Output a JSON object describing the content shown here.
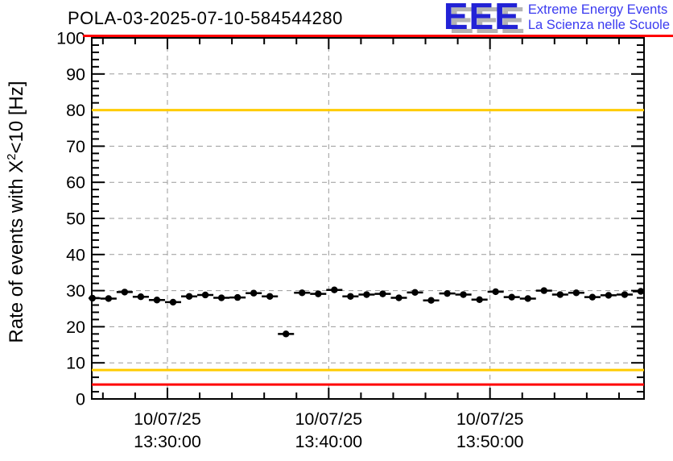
{
  "header": {
    "title": "POLA-03-2025-07-10-584544280",
    "logo": {
      "letters": "EEE",
      "tagline_line1": "Extreme Energy Events",
      "tagline_line2": "La Scienza nelle Scuole",
      "letters_color": "#2222d6",
      "shadow_color": "#b4b4b4",
      "tagline_color": "#3a3af0"
    }
  },
  "y_axis_title": {
    "prefix": "Rate of events with X",
    "sup": "2",
    "suffix": "<10 [Hz]"
  },
  "chart_data": {
    "type": "scatter",
    "title": "POLA-03-2025-07-10-584544280",
    "ylabel": "Rate of events with X^2<10 [Hz]",
    "xlabel": "",
    "ylim": [
      0,
      100
    ],
    "y_major_step": 10,
    "y_minor_step": 2,
    "grid": {
      "style": "dashed",
      "color": "#9a9a9a",
      "horizontal_at": [
        10,
        20,
        30,
        40,
        50,
        60,
        70,
        80,
        90
      ],
      "vertical_at_major_time_ticks": true
    },
    "x_axis": {
      "units": "minutes relative to 13:30:00",
      "t_range_min": [
        -4.69,
        29.55
      ],
      "minor_step_min": 2,
      "tick_labels": [
        {
          "date": "10/07/25",
          "time": "13:30:00",
          "t_min": 0
        },
        {
          "date": "10/07/25",
          "time": "13:40:00",
          "t_min": 10
        },
        {
          "date": "10/07/25",
          "time": "13:50:00",
          "t_min": 20
        }
      ]
    },
    "threshold_lines": [
      {
        "name": "alarm-high",
        "value": 100,
        "color": "#ff0000"
      },
      {
        "name": "warn-high",
        "value": 80,
        "color": "#ffcc00"
      },
      {
        "name": "warn-low",
        "value": 8,
        "color": "#ffcc00"
      },
      {
        "name": "alarm-low",
        "value": 4,
        "color": "#ff0000"
      }
    ],
    "series": [
      {
        "name": "event-rate",
        "marker": "filled-circle",
        "color": "#000000",
        "x_err_min": 0.5,
        "t_start_min": -4.65,
        "t_step_min": 1,
        "rates": [
          27.9,
          27.8,
          29.6,
          28.3,
          27.4,
          26.8,
          28.4,
          28.8,
          28.0,
          28.1,
          29.3,
          28.4,
          18.0,
          29.4,
          29.1,
          30.2,
          28.4,
          28.9,
          29.1,
          28.0,
          29.5,
          27.3,
          29.2,
          28.9,
          27.5,
          29.7,
          28.2,
          27.8,
          30.0,
          28.9,
          29.4,
          28.2,
          28.7,
          28.9,
          29.8
        ]
      }
    ]
  }
}
